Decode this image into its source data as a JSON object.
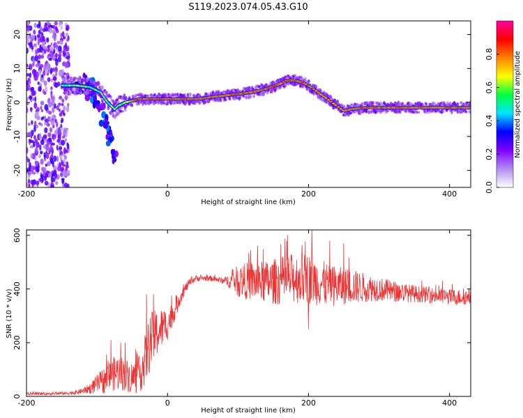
{
  "title": "S119.2023.074.05.43.G10",
  "chart_data": [
    {
      "type": "heatmap",
      "xlabel": "Height of straight line (km)",
      "ylabel": "Frequency (Hz)",
      "xlim": [
        -200,
        430
      ],
      "ylim": [
        -25,
        24
      ],
      "x_ticks": [
        "-200",
        "0",
        "200",
        "400"
      ],
      "y_ticks": [
        "-20",
        "-10",
        "0",
        "10",
        "20"
      ],
      "colorbar": {
        "label": "Normalized spectral amplitude",
        "range": [
          0,
          1
        ],
        "ticks": [
          "0.0",
          "0.2",
          "0.4",
          "0.6",
          "0.8"
        ],
        "colors": [
          "#ffffff",
          "#b38cf2",
          "#8000ff",
          "#0000ff",
          "#00e5ff",
          "#00ff40",
          "#ffff00",
          "#ff8000",
          "#ff0000",
          "#ff00a0"
        ]
      },
      "ridge": {
        "x": [
          -150,
          -130,
          -110,
          -95,
          -85,
          -75,
          -70,
          -60,
          -50,
          -40,
          -30,
          -20,
          0,
          20,
          40,
          50,
          60,
          80,
          100,
          120,
          140,
          160,
          170,
          180,
          190,
          200,
          220,
          240,
          250,
          260,
          280,
          300,
          340,
          380,
          420,
          430
        ],
        "y": [
          5,
          5,
          4.5,
          3,
          0,
          -2,
          -1,
          0,
          0.5,
          1,
          1,
          1,
          1,
          1,
          1,
          1.2,
          1.5,
          2,
          2.5,
          3,
          4,
          5.5,
          6.5,
          6.5,
          6,
          5,
          2,
          -1,
          -2.5,
          -2,
          -1.5,
          -1.5,
          -1.5,
          -1.5,
          -1.5,
          -1.5
        ]
      },
      "noise_region_x": [
        -200,
        -140
      ]
    },
    {
      "type": "line",
      "xlabel": "Height of straight line (km)",
      "ylabel": "SNR (10 * v/v)",
      "xlim": [
        -200,
        430
      ],
      "ylim": [
        0,
        620
      ],
      "x_ticks": [
        "-200",
        "0",
        "200",
        "400"
      ],
      "y_ticks": [
        "0",
        "200",
        "400",
        "600"
      ],
      "color": "#f03232",
      "envelope": {
        "x": [
          -200,
          -170,
          -140,
          -130,
          -120,
          -110,
          -100,
          -90,
          -80,
          -70,
          -60,
          -50,
          -40,
          -30,
          -25,
          -20,
          -10,
          0,
          10,
          20,
          30,
          40,
          60,
          80,
          90,
          100,
          120,
          140,
          160,
          180,
          200,
          220,
          240,
          260,
          280,
          300,
          320,
          340,
          360,
          380,
          400,
          420,
          430
        ],
        "mean": [
          10,
          10,
          12,
          15,
          20,
          30,
          45,
          60,
          80,
          90,
          80,
          70,
          80,
          150,
          200,
          220,
          250,
          270,
          320,
          380,
          420,
          440,
          440,
          430,
          430,
          430,
          430,
          425,
          430,
          440,
          440,
          420,
          410,
          410,
          405,
          400,
          390,
          385,
          380,
          375,
          370,
          370,
          370
        ],
        "spread": [
          5,
          5,
          6,
          8,
          10,
          20,
          35,
          50,
          60,
          70,
          60,
          60,
          70,
          100,
          110,
          100,
          80,
          60,
          40,
          25,
          15,
          12,
          10,
          12,
          30,
          60,
          75,
          80,
          90,
          95,
          95,
          85,
          75,
          65,
          55,
          45,
          40,
          35,
          30,
          30,
          30,
          30,
          30
        ],
        "peaks": [
          [
            -80,
            210
          ],
          [
            -60,
            200
          ],
          [
            -30,
            380
          ],
          [
            -20,
            380
          ],
          [
            170,
            600
          ],
          [
            205,
            620
          ],
          [
            230,
            580
          ],
          [
            250,
            570
          ],
          [
            200,
            250
          ],
          [
            390,
            430
          ],
          [
            430,
            420
          ]
        ]
      }
    }
  ]
}
